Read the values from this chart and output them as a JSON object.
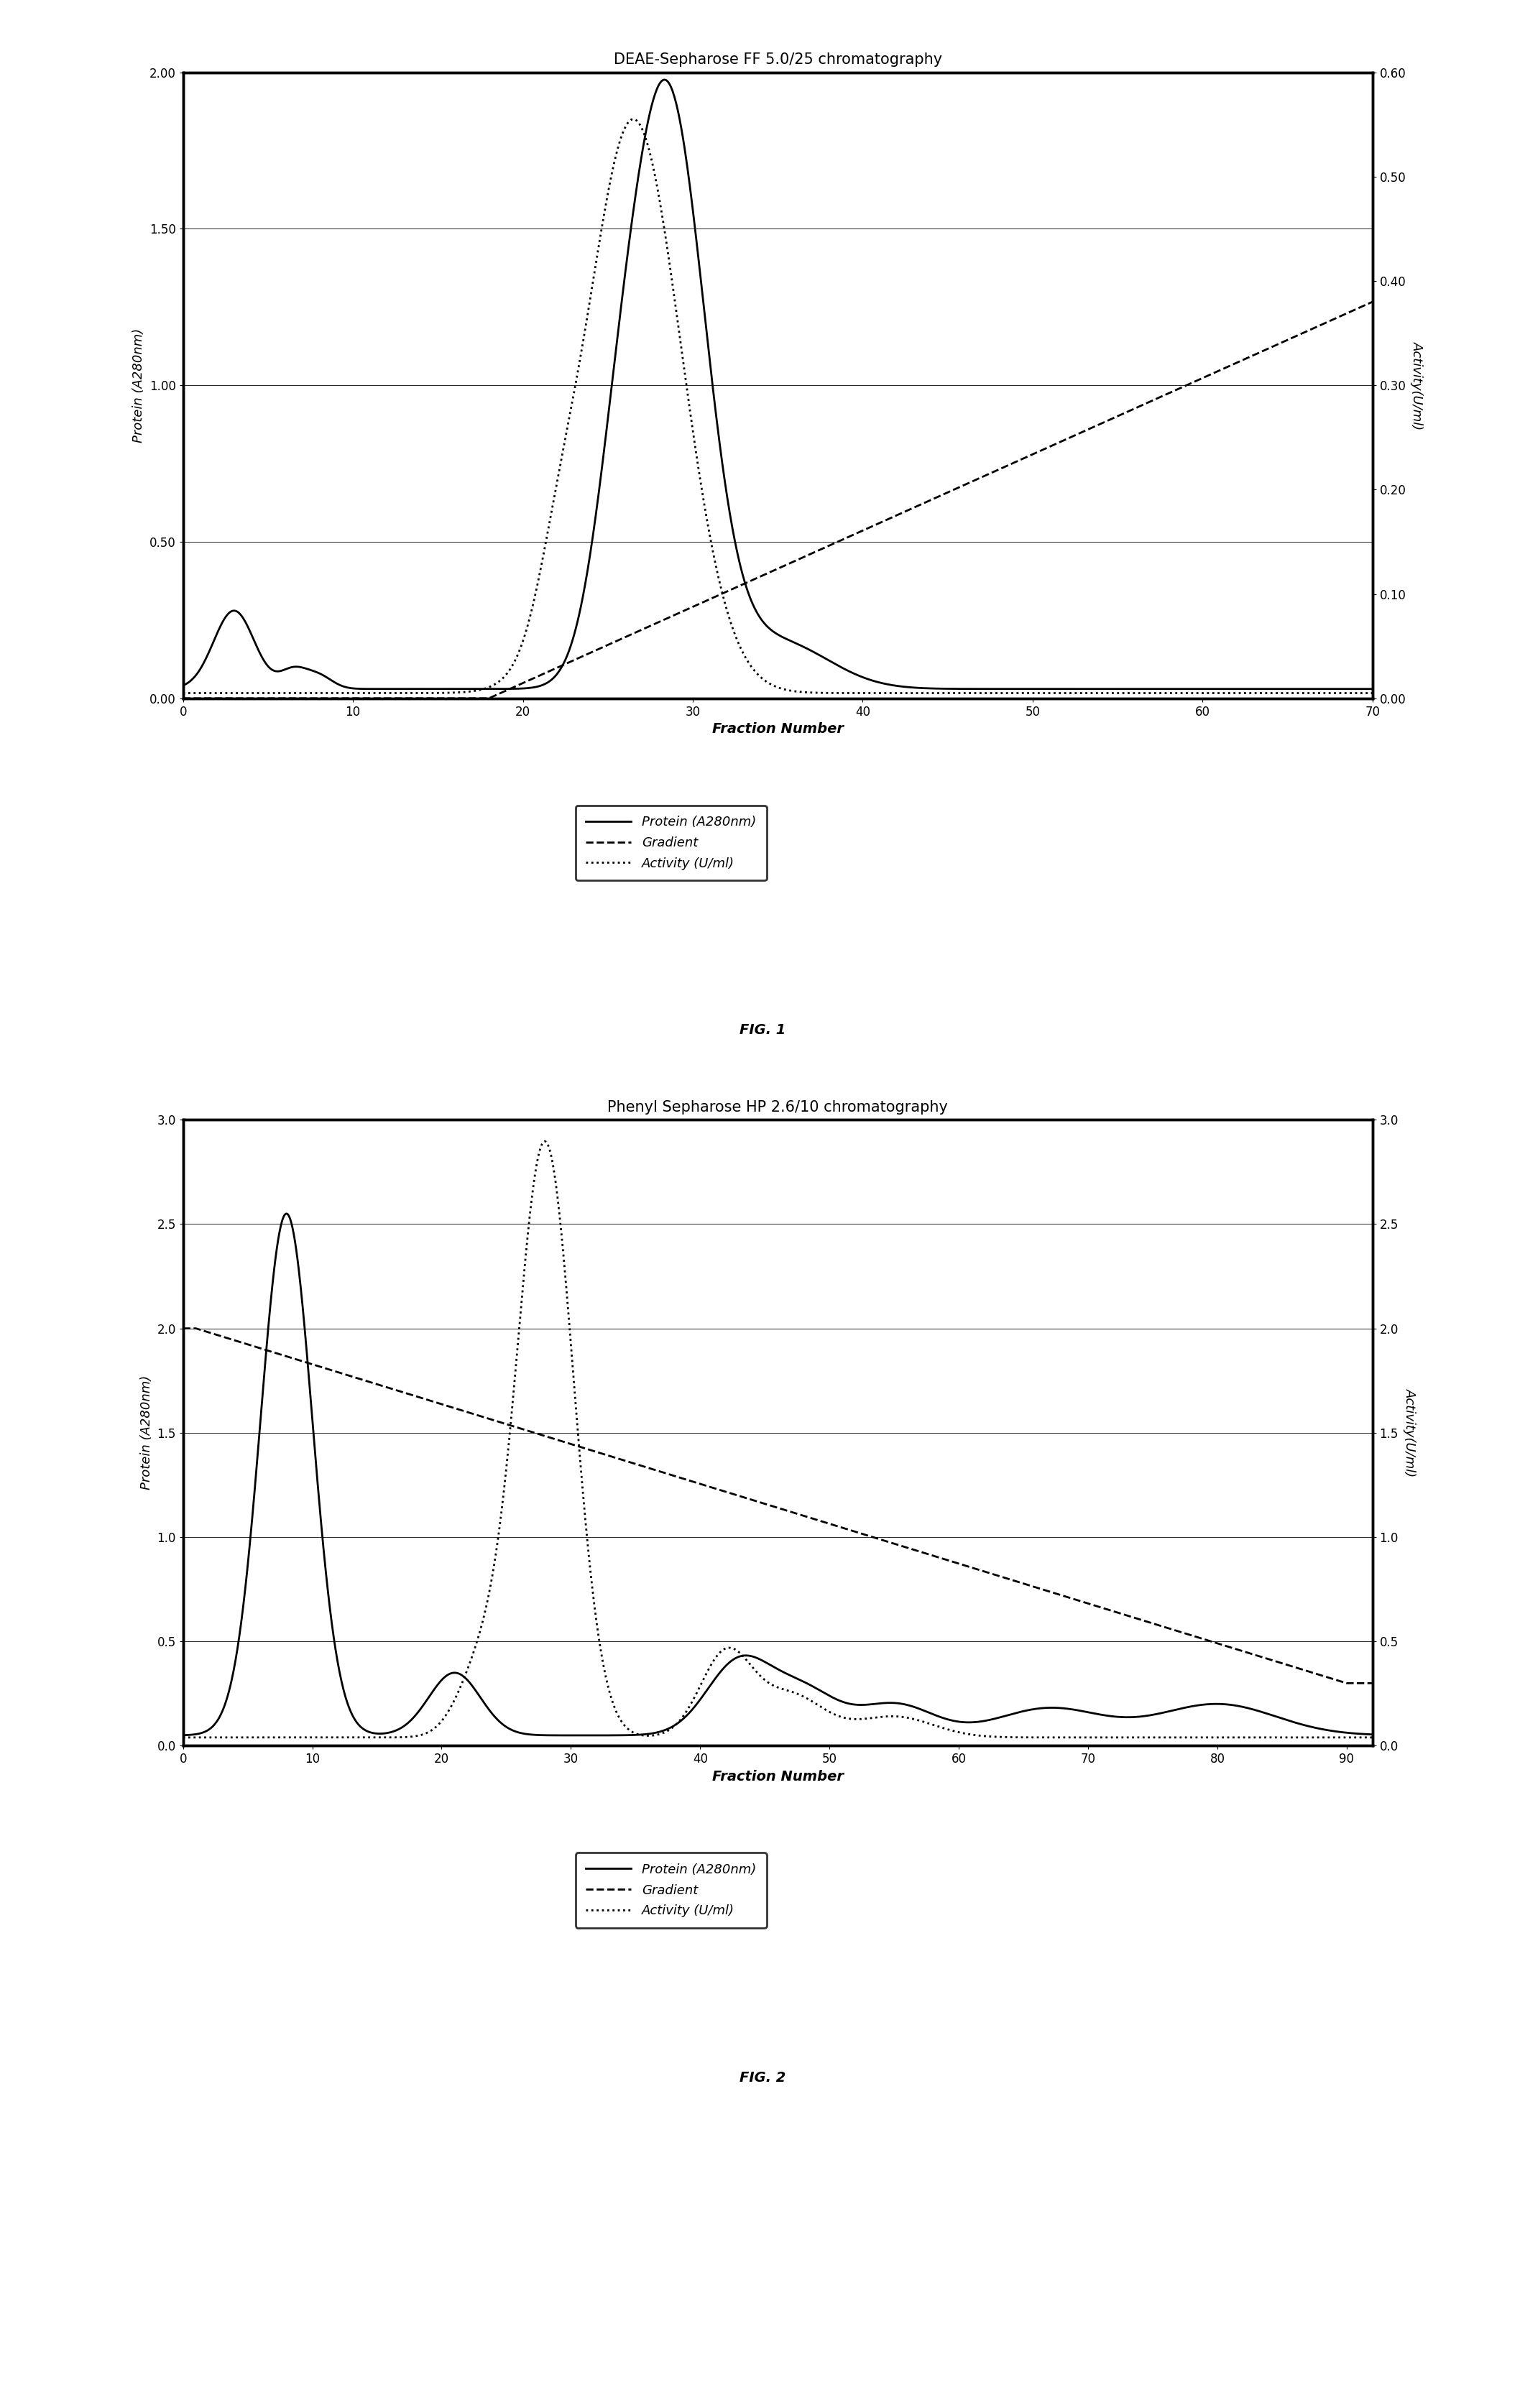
{
  "fig1": {
    "title": "DEAE-Sepharose FF 5.0/25 chromatography",
    "xlabel": "Fraction Number",
    "ylabel_left": "Protein (A280nm)",
    "ylabel_right": "Activity(U/ml)",
    "xlim": [
      0,
      70
    ],
    "ylim_left": [
      0.0,
      2.0
    ],
    "ylim_right": [
      0.0,
      0.6
    ],
    "yticks_left": [
      0.0,
      0.5,
      1.0,
      1.5,
      2.0
    ],
    "yticks_right": [
      0.0,
      0.1,
      0.2,
      0.3,
      0.4,
      0.5,
      0.6
    ],
    "xticks": [
      0,
      10,
      20,
      30,
      40,
      50,
      60,
      70
    ],
    "caption": "FIG. 1",
    "legend": [
      "Protein (A280nm)",
      "Gradient",
      "Activity (U/ml)"
    ]
  },
  "fig2": {
    "title": "Phenyl Sepharose HP 2.6/10 chromatography",
    "xlabel": "Fraction Number",
    "ylabel_left": "Protein (A280nm)",
    "ylabel_right": "Activity(U/ml)",
    "xlim": [
      0,
      92
    ],
    "ylim_left": [
      0.0,
      3.0
    ],
    "ylim_right": [
      0.0,
      3.0
    ],
    "yticks_left": [
      0.0,
      0.5,
      1.0,
      1.5,
      2.0,
      2.5,
      3.0
    ],
    "yticks_right": [
      0.0,
      0.5,
      1.0,
      1.5,
      2.0,
      2.5,
      3.0
    ],
    "xticks": [
      0,
      10,
      20,
      30,
      40,
      50,
      60,
      70,
      80,
      90
    ],
    "caption": "FIG. 2",
    "legend": [
      "Protein (A280nm)",
      "Gradient",
      "Activity (U/ml)"
    ]
  }
}
